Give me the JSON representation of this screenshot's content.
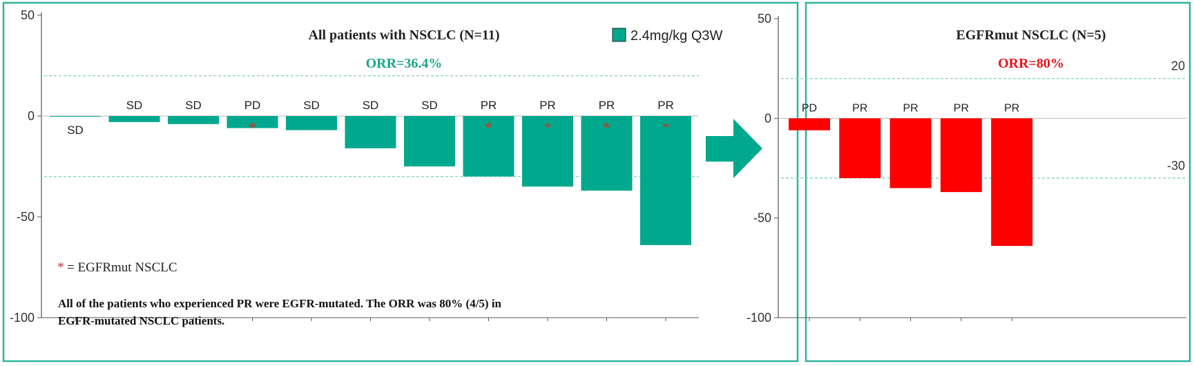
{
  "colors": {
    "frame": "#2bb59c",
    "teal_bar": "#00a88e",
    "red_bar": "#ff0000",
    "title_teal": "#1aa58a",
    "title_red": "#e5141a",
    "asterisk": "#c0392b",
    "ref_line": "#7fd0c4",
    "axis": "#555555",
    "text": "#222222"
  },
  "chart_data": [
    {
      "type": "bar",
      "title": "All patients with NSCLC (N=11)",
      "subtitle": "ORR=36.4%",
      "legend": {
        "label": "2.4mg/kg Q3W",
        "position": "top-right"
      },
      "ylim": [
        -100,
        50
      ],
      "yticks": [
        50,
        0,
        -50,
        -100
      ],
      "reference_lines": [
        20,
        -30
      ],
      "categories": [
        "SD",
        "SD",
        "SD",
        "PD",
        "SD",
        "SD",
        "SD",
        "PR",
        "PR",
        "PR",
        "PR"
      ],
      "values": [
        -0.3,
        -3,
        -4,
        -6,
        -7,
        -16,
        -25,
        -30,
        -35,
        -37,
        -64
      ],
      "egfr_mutated": [
        false,
        false,
        false,
        true,
        false,
        false,
        false,
        true,
        true,
        true,
        true
      ],
      "footnote_marker": "*",
      "footnote_label": "= EGFRmut NSCLC",
      "note": "All of the patients who experienced PR were EGFR-mutated. The ORR was 80% (4/5) in EGFR-mutated NSCLC patients."
    },
    {
      "type": "bar",
      "title": "EGFRmut NSCLC (N=5)",
      "subtitle": "ORR=80%",
      "ylim": [
        -100,
        50
      ],
      "yticks": [
        50,
        0,
        -50,
        -100
      ],
      "reference_lines": [
        20,
        -30
      ],
      "reference_labels": [
        "20",
        "-30"
      ],
      "categories": [
        "PD",
        "PR",
        "PR",
        "PR",
        "PR"
      ],
      "values": [
        -6,
        -30,
        -35,
        -37,
        -64
      ]
    }
  ]
}
